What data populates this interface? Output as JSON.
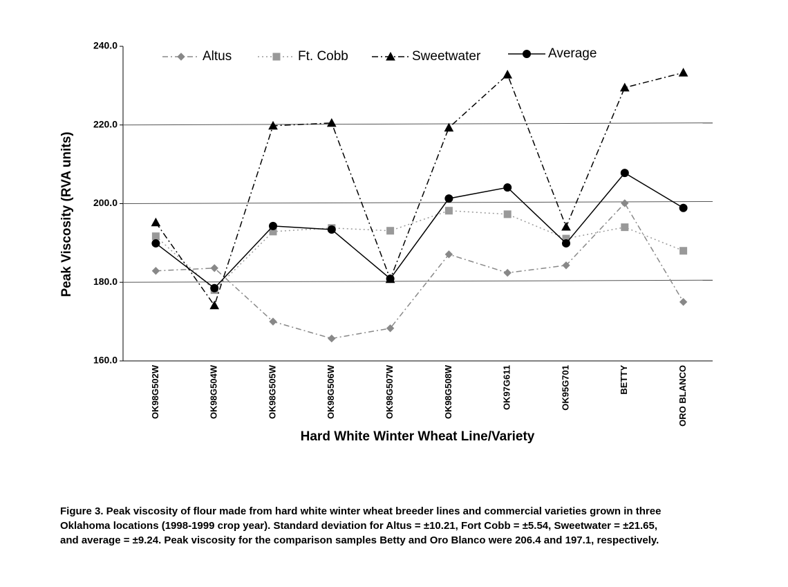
{
  "chart_data": {
    "type": "line",
    "y_label": "Peak Viscosity (RVA units)",
    "x_label": "Hard White Winter Wheat Line/Variety",
    "caption": [
      "Figure 3.  Peak viscosity of flour made from hard white winter wheat breeder lines and commercial varieties grown in three",
      "Oklahoma locations (1998-1999 crop year).  Standard deviation for Altus = ±10.21, Fort Cobb = ±5.54, Sweetwater = ±21.65,",
      "and average = ±9.24.  Peak viscosity for the comparison samples Betty and Oro Blanco were 206.4 and 197.1, respectively."
    ],
    "categories": [
      "OK98G502W",
      "OK98G504W",
      "OK98G505W",
      "OK98G506W",
      "OK98G507W",
      "OK98G508W",
      "OK97G611",
      "OK95G701",
      "BETTY",
      "ORO BLANCO"
    ],
    "series": [
      {
        "name": "Altus",
        "color": "#888888",
        "marker": "diamond",
        "dash": "8 4 2 4",
        "values": [
          182.9,
          183.6,
          170.0,
          165.7,
          168.3,
          187.1,
          182.4,
          184.3,
          200.1,
          175.0
        ]
      },
      {
        "name": "Ft. Cobb",
        "color": "#999999",
        "marker": "square",
        "dash": "2 4",
        "values": [
          191.7,
          178.0,
          192.9,
          193.8,
          193.1,
          198.2,
          197.3,
          191.1,
          194.0,
          188.0
        ]
      },
      {
        "name": "Sweetwater",
        "color": "#000000",
        "marker": "triangle",
        "dash": "9 4 2 4",
        "values": [
          195.2,
          174.1,
          219.8,
          220.5,
          180.8,
          219.3,
          232.8,
          194.1,
          229.5,
          233.3
        ]
      },
      {
        "name": "Average",
        "color": "#000000",
        "marker": "circle",
        "dash": "none",
        "values": [
          189.9,
          178.5,
          194.3,
          193.4,
          180.9,
          201.3,
          204.1,
          189.9,
          207.8,
          198.9
        ]
      }
    ],
    "ylim": [
      160,
      240
    ],
    "yticks": [
      {
        "value": 160,
        "label": "160.0"
      },
      {
        "value": 180,
        "label": "180.0"
      },
      {
        "value": 200,
        "label": "200.0"
      },
      {
        "value": 220,
        "label": "220.0"
      },
      {
        "value": 240,
        "label": "240.0"
      }
    ],
    "grid": true
  }
}
